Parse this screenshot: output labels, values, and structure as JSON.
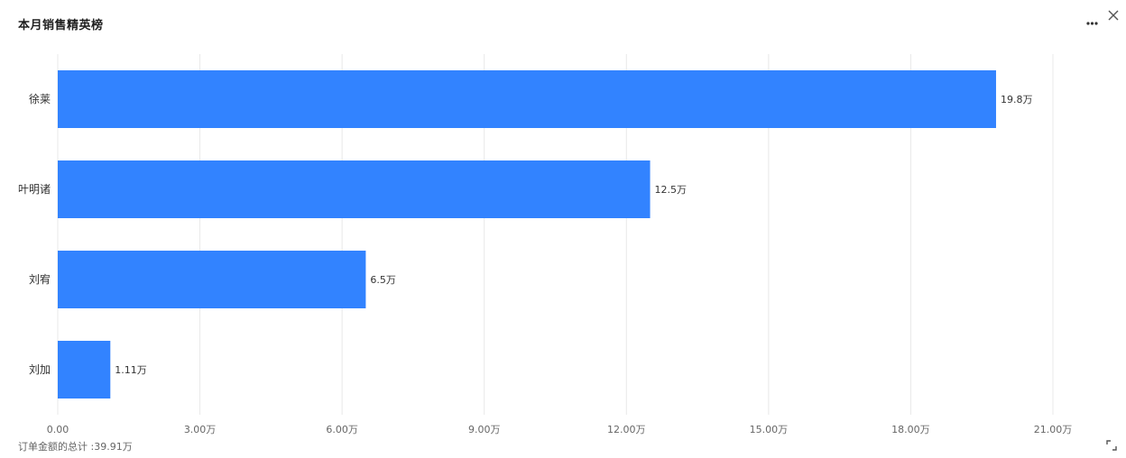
{
  "header": {
    "title": "本月销售精英榜"
  },
  "icons": {
    "more": "more-horizontal-icon",
    "close": "close-icon",
    "expand": "expand-icon"
  },
  "colors": {
    "bar": "#3283FF",
    "grid": "#E8E8E8",
    "axis_text": "#666666",
    "label_text": "#333333"
  },
  "chart_data": {
    "type": "bar",
    "orientation": "horizontal",
    "categories": [
      "徐莱",
      "叶明诸",
      "刘宥",
      "刘加"
    ],
    "values": [
      198000,
      125000,
      65000,
      11100
    ],
    "value_labels": [
      "19.8万",
      "12.5万",
      "6.5万",
      "1.11万"
    ],
    "xlim": [
      0,
      210000
    ],
    "x_ticks": [
      0,
      30000,
      60000,
      90000,
      120000,
      150000,
      180000,
      210000
    ],
    "x_tick_labels": [
      "0.00",
      "3.00万",
      "6.00万",
      "9.00万",
      "12.00万",
      "15.00万",
      "18.00万",
      "21.00万"
    ],
    "grid": true,
    "legend": "none"
  },
  "footer": {
    "total_label": "订单金额的总计 :39.91万"
  }
}
